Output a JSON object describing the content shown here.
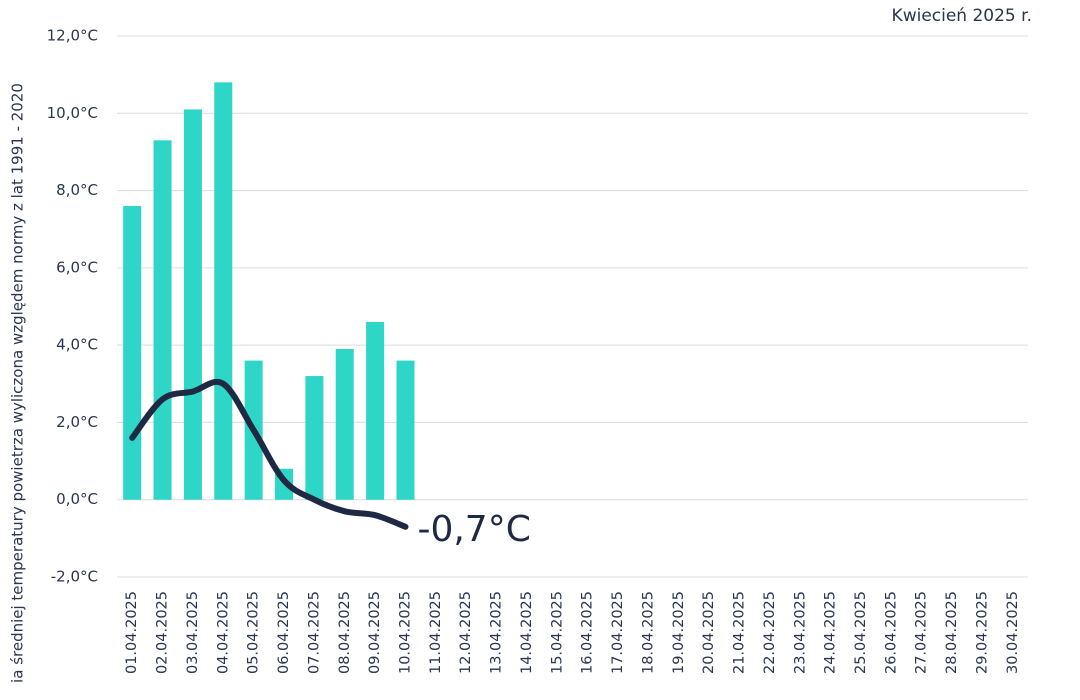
{
  "chart_data": {
    "type": "bar",
    "title": "Kwiecień 2025 r.",
    "ylabel": "ia średniej temperatury powietrza wyliczona względem normy z lat 1991 - 2020",
    "categories": [
      "01.04.2025",
      "02.04.2025",
      "03.04.2025",
      "04.04.2025",
      "05.04.2025",
      "06.04.2025",
      "07.04.2025",
      "08.04.2025",
      "09.04.2025",
      "10.04.2025",
      "11.04.2025",
      "12.04.2025",
      "13.04.2025",
      "14.04.2025",
      "15.04.2025",
      "16.04.2025",
      "17.04.2025",
      "18.04.2025",
      "19.04.2025",
      "20.04.2025",
      "21.04.2025",
      "22.04.2025",
      "23.04.2025",
      "24.04.2025",
      "25.04.2025",
      "26.04.2025",
      "27.04.2025",
      "28.04.2025",
      "29.04.2025",
      "30.04.2025"
    ],
    "series": [
      {
        "type": "bar",
        "color": "#2dd6c6",
        "values": [
          7.6,
          9.3,
          10.1,
          10.8,
          3.6,
          0.8,
          3.2,
          3.9,
          4.6,
          3.6,
          null,
          null,
          null,
          null,
          null,
          null,
          null,
          null,
          null,
          null,
          null,
          null,
          null,
          null,
          null,
          null,
          null,
          null,
          null,
          null
        ]
      },
      {
        "type": "line",
        "color": "#1e2944",
        "values": [
          1.6,
          2.6,
          2.8,
          3.0,
          1.8,
          0.5,
          0.0,
          -0.3,
          -0.4,
          -0.7,
          null,
          null,
          null,
          null,
          null,
          null,
          null,
          null,
          null,
          null,
          null,
          null,
          null,
          null,
          null,
          null,
          null,
          null,
          null,
          null
        ],
        "value_labels": [
          null,
          null,
          null,
          null,
          null,
          null,
          null,
          null,
          null,
          "-0,7°C",
          null,
          null,
          null,
          null,
          null,
          null,
          null,
          null,
          null,
          null,
          null,
          null,
          null,
          null,
          null,
          null,
          null,
          null,
          null,
          null
        ]
      }
    ],
    "ylim": [
      -2,
      12
    ],
    "yticks": [
      {
        "value": -2,
        "label": "-2,0°C"
      },
      {
        "value": 0,
        "label": "0,0°C"
      },
      {
        "value": 2,
        "label": "2,0°C"
      },
      {
        "value": 4,
        "label": "4,0°C"
      },
      {
        "value": 6,
        "label": "6,0°C"
      },
      {
        "value": 8,
        "label": "8,0°C"
      },
      {
        "value": 10,
        "label": "10,0°C"
      },
      {
        "value": 12,
        "label": "12,0°C"
      }
    ],
    "grid": true
  }
}
